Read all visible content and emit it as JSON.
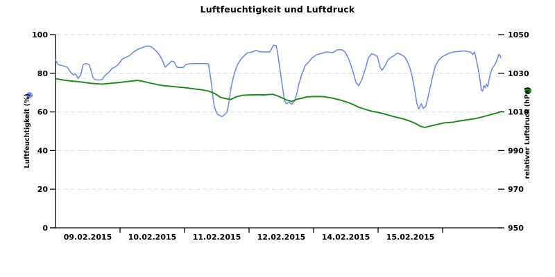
{
  "title": "Luftfeuchtigkeit und Luftdruck",
  "left_axis": {
    "label": "Luftfeuchtigkeit (%)",
    "ticks": [
      0,
      20,
      40,
      60,
      80,
      100
    ],
    "range": [
      0,
      100
    ],
    "color": "#6b8cea"
  },
  "right_axis": {
    "label": "relativer Luftdruck (hPa)",
    "ticks": [
      950,
      970,
      990,
      1010,
      1030,
      1050
    ],
    "range": [
      950,
      1050
    ],
    "color": "#168a16"
  },
  "x_axis": {
    "day_labels": [
      "09.02.2015",
      "10.02.2015",
      "11.02.2015",
      "12.02.2015",
      "14.02.2015",
      "15.02.2015"
    ],
    "note": "13.02.2015 absent from axis; data continues unlabeled past last tick"
  },
  "colors": {
    "humidity": "#6b8cea",
    "pressure": "#168a16",
    "grid": "#d9d9d9",
    "axis": "#000000",
    "background": "#ffffff"
  },
  "chart_data": {
    "type": "line",
    "title": "Luftfeuchtigkeit und Luftdruck",
    "x_tick_labels": [
      "09.02.2015",
      "10.02.2015",
      "11.02.2015",
      "12.02.2015",
      "14.02.2015",
      "15.02.2015"
    ],
    "x_unit": "day offset from start of visible range (1.0 = one labeled day interval)",
    "x_range": [
      0,
      6.91
    ],
    "grid": "horizontal dashed",
    "legend_position": "rotated axis labels with colored dots on left and right sides",
    "series": [
      {
        "name": "Luftfeuchtigkeit (%)",
        "axis": "left",
        "unit": "%",
        "ylim": [
          0,
          100
        ],
        "color": "#6b8cea",
        "points": [
          [
            0.0,
            87
          ],
          [
            0.04,
            84.5
          ],
          [
            0.1,
            84
          ],
          [
            0.18,
            83.2
          ],
          [
            0.24,
            80.3
          ],
          [
            0.28,
            79.1
          ],
          [
            0.31,
            79.7
          ],
          [
            0.35,
            77.3
          ],
          [
            0.39,
            79.1
          ],
          [
            0.43,
            84.5
          ],
          [
            0.47,
            85.1
          ],
          [
            0.52,
            84.5
          ],
          [
            0.55,
            81.5
          ],
          [
            0.58,
            78
          ],
          [
            0.61,
            76.7
          ],
          [
            0.67,
            76.5
          ],
          [
            0.72,
            76.7
          ],
          [
            0.77,
            79
          ],
          [
            0.82,
            80.3
          ],
          [
            0.88,
            82.5
          ],
          [
            0.94,
            83.5
          ],
          [
            0.99,
            85.3
          ],
          [
            1.03,
            87.2
          ],
          [
            1.08,
            88.1
          ],
          [
            1.14,
            89
          ],
          [
            1.21,
            91
          ],
          [
            1.28,
            92.5
          ],
          [
            1.36,
            93.4
          ],
          [
            1.4,
            94
          ],
          [
            1.47,
            94
          ],
          [
            1.53,
            92.5
          ],
          [
            1.58,
            90.8
          ],
          [
            1.63,
            88.5
          ],
          [
            1.67,
            85.7
          ],
          [
            1.7,
            83.2
          ],
          [
            1.76,
            85
          ],
          [
            1.8,
            86.3
          ],
          [
            1.84,
            85.9
          ],
          [
            1.88,
            83.2
          ],
          [
            1.93,
            83
          ],
          [
            1.98,
            83
          ],
          [
            2.02,
            84.5
          ],
          [
            2.1,
            85
          ],
          [
            2.25,
            85
          ],
          [
            2.35,
            85
          ],
          [
            2.37,
            84.8
          ],
          [
            2.4,
            78.5
          ],
          [
            2.42,
            73.7
          ],
          [
            2.45,
            64.8
          ],
          [
            2.47,
            61.8
          ],
          [
            2.51,
            58.8
          ],
          [
            2.58,
            57.6
          ],
          [
            2.63,
            58.8
          ],
          [
            2.66,
            60
          ],
          [
            2.69,
            65.4
          ],
          [
            2.72,
            72.5
          ],
          [
            2.74,
            75.5
          ],
          [
            2.76,
            78.5
          ],
          [
            2.8,
            82.7
          ],
          [
            2.83,
            85.1
          ],
          [
            2.89,
            88
          ],
          [
            2.97,
            90.5
          ],
          [
            3.05,
            91
          ],
          [
            3.11,
            91.9
          ],
          [
            3.16,
            91.2
          ],
          [
            3.23,
            91
          ],
          [
            3.32,
            91
          ],
          [
            3.38,
            94.6
          ],
          [
            3.42,
            94.3
          ],
          [
            3.44,
            91
          ],
          [
            3.48,
            82.1
          ],
          [
            3.51,
            74.9
          ],
          [
            3.55,
            65.9
          ],
          [
            3.58,
            64.2
          ],
          [
            3.62,
            65.1
          ],
          [
            3.66,
            63.9
          ],
          [
            3.71,
            65.9
          ],
          [
            3.75,
            70.7
          ],
          [
            3.77,
            74.3
          ],
          [
            3.8,
            77.3
          ],
          [
            3.82,
            79.7
          ],
          [
            3.85,
            82.1
          ],
          [
            3.87,
            83.9
          ],
          [
            3.92,
            85.7
          ],
          [
            3.98,
            88.1
          ],
          [
            4.05,
            89.6
          ],
          [
            4.13,
            90.4
          ],
          [
            4.2,
            91
          ],
          [
            4.3,
            90.7
          ],
          [
            4.37,
            92.2
          ],
          [
            4.44,
            92.2
          ],
          [
            4.49,
            91
          ],
          [
            4.55,
            87
          ],
          [
            4.6,
            82
          ],
          [
            4.66,
            75
          ],
          [
            4.7,
            73.5
          ],
          [
            4.75,
            77
          ],
          [
            4.81,
            83
          ],
          [
            4.85,
            88
          ],
          [
            4.9,
            90
          ],
          [
            4.95,
            89.5
          ],
          [
            4.99,
            88.6
          ],
          [
            5.03,
            83.2
          ],
          [
            5.06,
            81.5
          ],
          [
            5.11,
            84
          ],
          [
            5.15,
            86.8
          ],
          [
            5.19,
            88
          ],
          [
            5.25,
            89.2
          ],
          [
            5.3,
            90.5
          ],
          [
            5.35,
            89.8
          ],
          [
            5.41,
            88.6
          ],
          [
            5.45,
            86.3
          ],
          [
            5.49,
            83
          ],
          [
            5.53,
            78
          ],
          [
            5.57,
            71
          ],
          [
            5.6,
            64.5
          ],
          [
            5.63,
            61.5
          ],
          [
            5.67,
            64.2
          ],
          [
            5.7,
            61.8
          ],
          [
            5.74,
            63
          ],
          [
            5.77,
            67
          ],
          [
            5.81,
            73
          ],
          [
            5.85,
            79
          ],
          [
            5.89,
            84
          ],
          [
            5.94,
            86.8
          ],
          [
            5.99,
            88.5
          ],
          [
            6.03,
            89.2
          ],
          [
            6.1,
            90.4
          ],
          [
            6.17,
            91
          ],
          [
            6.25,
            91.3
          ],
          [
            6.33,
            91.6
          ],
          [
            6.43,
            91
          ],
          [
            6.47,
            89.8
          ],
          [
            6.49,
            91
          ],
          [
            6.51,
            89.2
          ],
          [
            6.53,
            85.7
          ],
          [
            6.56,
            80.9
          ],
          [
            6.58,
            76.7
          ],
          [
            6.6,
            71.3
          ],
          [
            6.62,
            70.7
          ],
          [
            6.64,
            73.7
          ],
          [
            6.66,
            72.5
          ],
          [
            6.68,
            74.3
          ],
          [
            6.7,
            73.1
          ],
          [
            6.72,
            76.7
          ],
          [
            6.74,
            79.7
          ],
          [
            6.77,
            82.7
          ],
          [
            6.8,
            83.9
          ],
          [
            6.83,
            85.7
          ],
          [
            6.86,
            88.6
          ],
          [
            6.87,
            89.8
          ],
          [
            6.89,
            89.2
          ],
          [
            6.9,
            88.1
          ]
        ]
      },
      {
        "name": "relativer Luftdruck (hPa)",
        "axis": "right",
        "unit": "hPa",
        "ylim": [
          950,
          1050
        ],
        "color": "#168a16",
        "points": [
          [
            0.0,
            1027.2
          ],
          [
            0.12,
            1026.5
          ],
          [
            0.25,
            1026.0
          ],
          [
            0.4,
            1025.5
          ],
          [
            0.55,
            1024.8
          ],
          [
            0.72,
            1024.4
          ],
          [
            0.85,
            1024.8
          ],
          [
            0.95,
            1025.1
          ],
          [
            1.11,
            1025.7
          ],
          [
            1.26,
            1026.3
          ],
          [
            1.32,
            1026.1
          ],
          [
            1.47,
            1024.9
          ],
          [
            1.65,
            1023.7
          ],
          [
            1.83,
            1023.1
          ],
          [
            2.01,
            1022.5
          ],
          [
            2.18,
            1021.8
          ],
          [
            2.26,
            1021.5
          ],
          [
            2.37,
            1020.8
          ],
          [
            2.47,
            1019.5
          ],
          [
            2.56,
            1017.5
          ],
          [
            2.65,
            1016.8
          ],
          [
            2.72,
            1016.5
          ],
          [
            2.8,
            1017.8
          ],
          [
            2.9,
            1018.6
          ],
          [
            3.06,
            1018.9
          ],
          [
            3.23,
            1018.8
          ],
          [
            3.37,
            1019.1
          ],
          [
            3.44,
            1018.3
          ],
          [
            3.52,
            1017.1
          ],
          [
            3.58,
            1016.2
          ],
          [
            3.66,
            1015.4
          ],
          [
            3.73,
            1016.4
          ],
          [
            3.82,
            1017.1
          ],
          [
            3.9,
            1017.8
          ],
          [
            4.03,
            1018.0
          ],
          [
            4.16,
            1017.9
          ],
          [
            4.3,
            1017.1
          ],
          [
            4.44,
            1015.9
          ],
          [
            4.59,
            1014.2
          ],
          [
            4.7,
            1012.4
          ],
          [
            4.87,
            1010.6
          ],
          [
            5.05,
            1009.4
          ],
          [
            5.24,
            1007.6
          ],
          [
            5.41,
            1006.2
          ],
          [
            5.55,
            1004.5
          ],
          [
            5.67,
            1002.4
          ],
          [
            5.73,
            1002.0
          ],
          [
            5.81,
            1002.7
          ],
          [
            5.88,
            1003.2
          ],
          [
            6.02,
            1004.3
          ],
          [
            6.16,
            1004.7
          ],
          [
            6.24,
            1005.2
          ],
          [
            6.38,
            1005.9
          ],
          [
            6.52,
            1006.6
          ],
          [
            6.67,
            1007.9
          ],
          [
            6.77,
            1008.8
          ],
          [
            6.85,
            1009.5
          ],
          [
            6.91,
            1010.2
          ]
        ]
      }
    ]
  }
}
